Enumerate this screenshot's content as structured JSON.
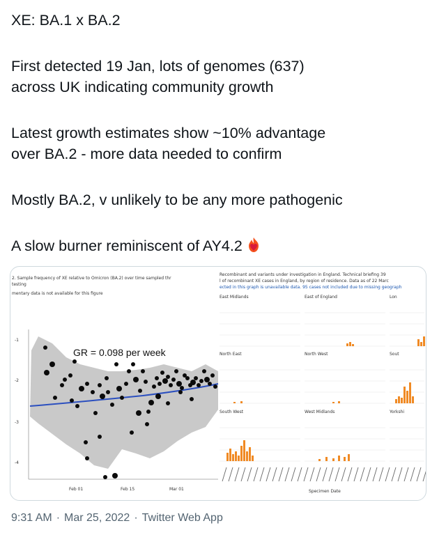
{
  "tweet": {
    "paragraphs": [
      "XE: BA.1 x BA.2",
      "First detected 19 Jan, lots of genomes (637)",
      "across UK indicating community growth",
      "Latest growth estimates show ~10% advantage",
      "over BA.2 - more data needed to confirm",
      "Mostly BA.2, v unlikely to be any more pathogenic",
      "A slow burner reminiscent of AY4.2"
    ],
    "emoji_icon": "fire-heart-icon"
  },
  "media": {
    "left_chart": {
      "caption_line1": "2. Sample frequency of XE relative to Omicron (BA.2) over time sampled thr",
      "caption_line2": "testing",
      "caption_line3": "mentary data is not available for this figure",
      "gr_label": "GR = 0.098 per week",
      "x_ticks": [
        "Feb 01",
        "Feb 15",
        "Mar 01"
      ],
      "colors": {
        "ribbon": "#c9c9c9",
        "fit_line": "#2b4fbf",
        "points": "#0b0b0b"
      }
    },
    "right_chart": {
      "caption_line1": "Recombinant and variants under investigation in England. Technical briefing 39",
      "caption_line2": "l of recombinant XE cases in England, by region of residence. Data as of 22 Marc",
      "caption_line3": "ected in this graph is unavailable data. 95 cases not included due to missing geograph",
      "panel_labels": [
        [
          "East Midlands",
          "East of England",
          "Lon"
        ],
        [
          "North East",
          "North West",
          "Sout"
        ],
        [
          "South West",
          "West Midlands",
          "Yorkshi"
        ]
      ],
      "x_label": "Specimen Date",
      "bar_color": "#f08a24"
    }
  },
  "footer": {
    "time": "9:31 AM",
    "date": "Mar 25, 2022",
    "source": "Twitter Web App",
    "separator": "·"
  }
}
